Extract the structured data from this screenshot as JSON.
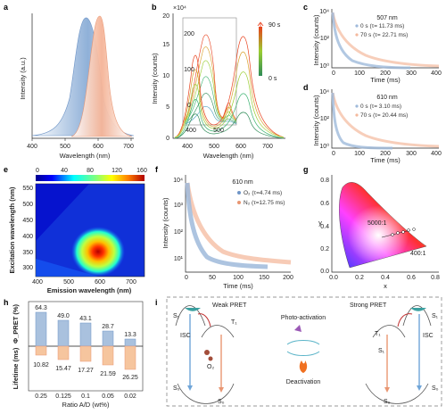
{
  "panels": {
    "a": {
      "label": "a",
      "ylabel": "Intensity (a.u.)",
      "xlabel": "Wavelength (nm)",
      "xticks": [
        "400",
        "500",
        "600",
        "700"
      ]
    },
    "b": {
      "label": "b",
      "ylabel": "Intensity (counts)",
      "xlabel": "Wavelength (nm)",
      "multiplier": "×10⁴",
      "yticks": [
        "0",
        "5",
        "10",
        "15",
        "20"
      ],
      "xticks": [
        "400",
        "500",
        "600",
        "700"
      ],
      "inset_yticks": [
        "0",
        "100",
        "200"
      ],
      "inset_xticks": [
        "400",
        "500"
      ],
      "time_top": "90 s",
      "time_bottom": "0 s"
    },
    "c": {
      "label": "c",
      "title": "507 nm",
      "ylabel": "Intensity (counts)",
      "xlabel": "Time (ms)",
      "xticks": [
        "0",
        "100",
        "200",
        "300",
        "400"
      ],
      "yticks": [
        "10⁰",
        "10²",
        "10⁴"
      ],
      "legend": [
        "0 s (τ= 11.73 ms)",
        "70 s (τ= 22.71 ms)"
      ]
    },
    "d": {
      "label": "d",
      "title": "610 nm",
      "ylabel": "Intensity (counts)",
      "xlabel": "Time (ms)",
      "xticks": [
        "0",
        "100",
        "200",
        "300",
        "400"
      ],
      "yticks": [
        "10⁰",
        "10²",
        "10⁴"
      ],
      "legend": [
        "0 s (τ= 3.10 ms)",
        "70 s (τ= 20.44 ms)"
      ]
    },
    "e": {
      "label": "e",
      "ylabel": "Excitation wavelength (nm)",
      "xlabel": "Emission wavelength (nm)",
      "xticks": [
        "400",
        "500",
        "600",
        "700"
      ],
      "yticks": [
        "300",
        "350",
        "400",
        "450",
        "500",
        "550"
      ],
      "colorbar": [
        "0",
        "40",
        "80",
        "120",
        "160"
      ]
    },
    "f": {
      "label": "f",
      "title": "610 nm",
      "ylabel": "Intensity (counts)",
      "xlabel": "Time (ms)",
      "xticks": [
        "0",
        "50",
        "100",
        "150",
        "200"
      ],
      "yticks": [
        "10¹",
        "10²",
        "10³",
        "10⁴"
      ],
      "legend": [
        "O₂ (τ=4.74 ms)",
        "N₂ (τ=12.75 ms)"
      ]
    },
    "g": {
      "label": "g",
      "ylabel": "y",
      "xlabel": "x",
      "xticks": [
        "0.0",
        "0.2",
        "0.4",
        "0.6",
        "0.8"
      ],
      "yticks": [
        "0.0",
        "0.2",
        "0.4",
        "0.6",
        "0.8"
      ],
      "annot_top": "5000:1",
      "annot_bottom": "400:1"
    },
    "h": {
      "label": "h",
      "ylabel_top": "Φ_PRET (%)",
      "ylabel_bottom": "Lifetime (ms)",
      "xlabel": "Ratio A/D (wt%)",
      "categories": [
        "0.25",
        "0.125",
        "0.1",
        "0.05",
        "0.02"
      ],
      "pret": [
        "64.3",
        "49.0",
        "43.1",
        "28.7",
        "13.3"
      ],
      "lifetime": [
        "10.82",
        "15.47",
        "17.27",
        "21.59",
        "26.25"
      ]
    },
    "i": {
      "label": "i",
      "weak": "Weak PRET",
      "strong": "Strong PRET",
      "photo": "Photo-activation",
      "deact": "Deactivation",
      "s1": "S₁",
      "t1": "T₁",
      "s0": "S₀",
      "isc": "ISC",
      "o2": "O₂"
    }
  },
  "chart_data": [
    {
      "type": "area",
      "title": "",
      "xlabel": "Wavelength (nm)",
      "ylabel": "Intensity (a.u.)",
      "xlim": [
        400,
        750
      ],
      "series": [
        {
          "name": "",
          "x": [
            400,
            450,
            500,
            520,
            540,
            600,
            650,
            700,
            750
          ],
          "y": [
            0.02,
            0.2,
            0.85,
            1.0,
            0.9,
            0.35,
            0.15,
            0.06,
            0.02
          ]
        },
        {
          "name": "",
          "x": [
            500,
            530,
            550,
            560,
            580,
            620,
            700
          ],
          "y": [
            0.0,
            0.3,
            0.9,
            1.0,
            0.5,
            0.1,
            0.0
          ]
        }
      ]
    },
    {
      "type": "line",
      "title": "",
      "xlabel": "Wavelength (nm)",
      "ylabel": "Intensity (counts)",
      "xlim": [
        350,
        750
      ],
      "ylim": [
        0,
        200000
      ],
      "series": [
        {
          "name": "90 s",
          "x": [
            400,
            450,
            480,
            500,
            510,
            550,
            580,
            610,
            640,
            700
          ],
          "y": [
            20000,
            60000,
            130000,
            140000,
            110000,
            50000,
            130000,
            170000,
            70000,
            5000
          ]
        },
        {
          "name": "0 s",
          "x": [
            400,
            450,
            480,
            500,
            510,
            550,
            580,
            610,
            640,
            700
          ],
          "y": [
            5000,
            30000,
            80000,
            90000,
            60000,
            20000,
            30000,
            40000,
            20000,
            2000
          ]
        }
      ]
    },
    {
      "type": "scatter",
      "title": "507 nm",
      "xlabel": "Time (ms)",
      "ylabel": "Intensity (counts)",
      "xlim": [
        0,
        400
      ],
      "yscale": "log",
      "series": [
        {
          "name": "0 s (τ= 11.73 ms)",
          "x": [
            0,
            50,
            100,
            150,
            200
          ],
          "y": [
            10000,
            300,
            30,
            5,
            2
          ]
        },
        {
          "name": "70 s (τ= 22.71 ms)",
          "x": [
            0,
            50,
            100,
            200,
            300,
            400
          ],
          "y": [
            10000,
            2000,
            400,
            50,
            10,
            3
          ]
        }
      ]
    },
    {
      "type": "scatter",
      "title": "610 nm",
      "xlabel": "Time (ms)",
      "ylabel": "Intensity (counts)",
      "xlim": [
        0,
        400
      ],
      "yscale": "log",
      "series": [
        {
          "name": "0 s (τ= 3.10 ms)",
          "x": [
            0,
            30,
            60,
            100
          ],
          "y": [
            10000,
            100,
            5,
            1
          ]
        },
        {
          "name": "70 s (τ= 20.44 ms)",
          "x": [
            0,
            50,
            100,
            200,
            300,
            400
          ],
          "y": [
            10000,
            2000,
            400,
            50,
            10,
            3
          ]
        }
      ]
    },
    {
      "type": "heatmap",
      "title": "",
      "xlabel": "Emission wavelength (nm)",
      "ylabel": "Excitation wavelength (nm)",
      "xlim": [
        400,
        750
      ],
      "ylim": [
        300,
        580
      ],
      "peak": {
        "x": 615,
        "y": 365,
        "value": 160
      },
      "colorbar": [
        0,
        160
      ]
    },
    {
      "type": "scatter",
      "title": "610 nm",
      "xlabel": "Time (ms)",
      "ylabel": "Intensity (counts)",
      "xlim": [
        0,
        200
      ],
      "yscale": "log",
      "series": [
        {
          "name": "O₂ (τ=4.74 ms)",
          "x": [
            0,
            20,
            40,
            60,
            100
          ],
          "y": [
            10000,
            500,
            60,
            20,
            15
          ]
        },
        {
          "name": "N₂ (τ=12.75 ms)",
          "x": [
            0,
            25,
            50,
            100,
            150,
            200
          ],
          "y": [
            10000,
            2500,
            700,
            120,
            40,
            20
          ]
        }
      ]
    },
    {
      "type": "scatter",
      "title": "",
      "xlabel": "x",
      "ylabel": "y",
      "xlim": [
        0,
        0.8
      ],
      "ylim": [
        0,
        0.8
      ],
      "series": [
        {
          "name": "",
          "x": [
            0.42,
            0.47,
            0.52,
            0.56,
            0.6
          ],
          "y": [
            0.38,
            0.4,
            0.42,
            0.44,
            0.45
          ]
        }
      ]
    },
    {
      "type": "bar",
      "title": "",
      "xlabel": "Ratio A/D (wt%)",
      "ylabel": "Φ_PRET (%)",
      "categories": [
        "0.25",
        "0.125",
        "0.1",
        "0.05",
        "0.02"
      ],
      "values": [
        64.3,
        49.0,
        43.1,
        28.7,
        13.3
      ]
    },
    {
      "type": "bar",
      "title": "",
      "xlabel": "Ratio A/D (wt%)",
      "ylabel": "Lifetime (ms)",
      "categories": [
        "0.25",
        "0.125",
        "0.1",
        "0.05",
        "0.02"
      ],
      "values": [
        10.82,
        15.47,
        17.27,
        21.59,
        26.25
      ]
    }
  ],
  "colors": {
    "blue": "#9fbadb",
    "orange": "#f4b99d",
    "blue_dark": "#6f95c7",
    "orange_dark": "#e99672",
    "bar_blue": "#a9c1de",
    "bar_orange": "#f6c59e"
  }
}
